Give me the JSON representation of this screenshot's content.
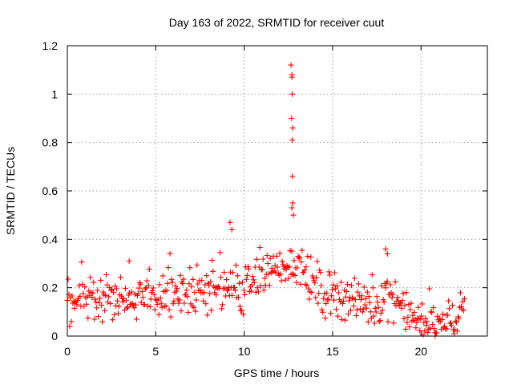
{
  "chart_data": {
    "type": "scatter",
    "title": "Day 163 of 2022, SRMTID for receiver cuut",
    "xlabel": "GPS time / hours",
    "ylabel": "SRMTID / TECUs",
    "xlim": [
      0,
      23.75
    ],
    "ylim": [
      0,
      1.2
    ],
    "xticks": [
      0,
      5,
      10,
      15,
      20
    ],
    "yticks": [
      0,
      0.2,
      0.4,
      0.6,
      0.8,
      1,
      1.2
    ],
    "xtick_labels": [
      "0",
      "5",
      "10",
      "15",
      "20"
    ],
    "ytick_labels": [
      "0",
      "0.2",
      "0.4",
      "0.6",
      "0.8",
      "1",
      "1.2"
    ],
    "grid": true,
    "marker": "+",
    "series_color": "#ff0000",
    "profile_x": [
      0,
      0.5,
      1,
      1.5,
      2,
      2.5,
      3,
      3.5,
      4,
      4.5,
      5,
      5.5,
      6,
      6.5,
      7,
      7.5,
      8,
      8.5,
      9,
      9.5,
      10,
      10.5,
      11,
      11.5,
      12,
      12.5,
      13,
      13.5,
      14,
      14.5,
      15,
      15.5,
      16,
      16.5,
      17,
      17.5,
      18,
      18.5,
      19,
      19.5,
      20,
      20.5,
      21,
      21.5,
      22,
      22.5
    ],
    "profile_y": [
      0.15,
      0.14,
      0.16,
      0.16,
      0.15,
      0.15,
      0.13,
      0.15,
      0.16,
      0.17,
      0.17,
      0.16,
      0.17,
      0.17,
      0.16,
      0.18,
      0.19,
      0.18,
      0.21,
      0.19,
      0.2,
      0.22,
      0.25,
      0.27,
      0.28,
      0.3,
      0.3,
      0.25,
      0.2,
      0.18,
      0.18,
      0.17,
      0.15,
      0.14,
      0.13,
      0.13,
      0.18,
      0.17,
      0.11,
      0.08,
      0.05,
      0.05,
      0.05,
      0.06,
      0.06,
      0.11
    ],
    "spike": {
      "x": [
        12.65,
        12.7,
        12.7,
        12.72,
        12.68,
        12.75,
        12.72,
        12.73,
        12.7,
        12.75,
        12.78
      ],
      "y": [
        1.12,
        1.07,
        1.08,
        1.0,
        0.9,
        0.86,
        0.81,
        0.66,
        0.53,
        0.55,
        0.5
      ]
    },
    "notable_points": {
      "x": [
        3.5,
        9.2,
        9.3,
        18.0,
        18.1,
        20.8
      ],
      "y": [
        0.31,
        0.47,
        0.44,
        0.36,
        0.34,
        0.0
      ]
    }
  }
}
